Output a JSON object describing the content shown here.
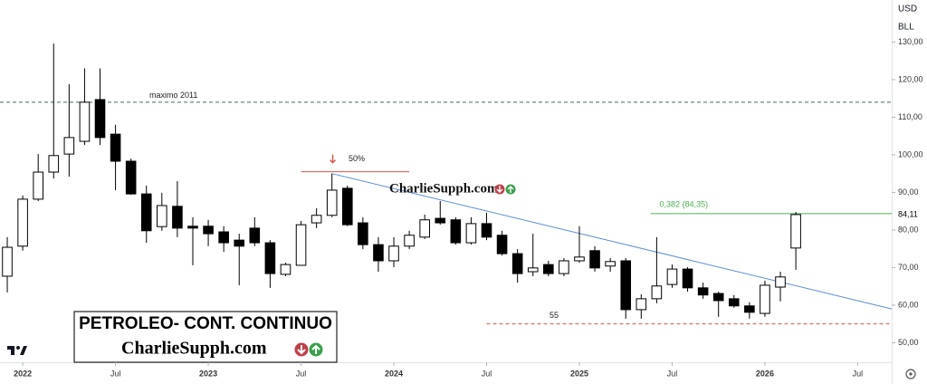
{
  "chart_data": {
    "type": "candlestick",
    "currency": "USD",
    "unit": "BLL",
    "watermark": "CharlieSupph.com",
    "title_box": {
      "title": "PETROLEO- CONT. CONTINUO",
      "brand": "CharlieSupph.com"
    },
    "ylim": [
      44.8,
      141.2
    ],
    "yticks": [
      {
        "value": 50,
        "label": "50,00"
      },
      {
        "value": 60,
        "label": "60,00"
      },
      {
        "value": 70,
        "label": "70,00"
      },
      {
        "value": 80,
        "label": "80,00"
      },
      {
        "value": 90,
        "label": "90,00"
      },
      {
        "value": 100,
        "label": "100,00"
      },
      {
        "value": 110,
        "label": "110,00"
      },
      {
        "value": 120,
        "label": "120,00"
      },
      {
        "value": 130,
        "label": "130,00"
      }
    ],
    "last_price": {
      "value": 84.11,
      "label": "84,11"
    },
    "xlim": [
      -0.47,
      57.2
    ],
    "xticks": [
      {
        "value": 1,
        "label": "2022"
      },
      {
        "value": 7,
        "label": "Jul"
      },
      {
        "value": 13,
        "label": "2023"
      },
      {
        "value": 19,
        "label": "Jul"
      },
      {
        "value": 25,
        "label": "2024"
      },
      {
        "value": 31,
        "label": "Jul"
      },
      {
        "value": 37,
        "label": "2025"
      },
      {
        "value": 43,
        "label": "Jul"
      },
      {
        "value": 49,
        "label": "2026"
      },
      {
        "value": 55,
        "label": "Jul"
      }
    ],
    "categories": [
      null,
      null,
      null,
      null,
      null,
      null,
      null,
      null,
      null,
      null,
      null,
      null,
      null,
      null,
      null,
      null,
      null,
      null,
      null,
      null,
      null,
      null,
      null,
      null,
      null,
      null,
      null,
      null,
      null,
      null,
      null,
      null,
      null,
      null,
      null,
      null,
      null,
      null,
      null,
      null,
      null,
      null,
      null,
      null,
      null,
      null,
      null,
      null,
      null,
      null,
      null,
      null
    ],
    "open": [
      67.7,
      75.7,
      88.2,
      95.4,
      100.2,
      103.6,
      114.7,
      105.5,
      98.3,
      89.6,
      80.9,
      86.3,
      81,
      81,
      79.5,
      77.3,
      80.5,
      76.6,
      68.2,
      70.6,
      81.9,
      83.9,
      91.1,
      81.9,
      76.1,
      71.8,
      75.7,
      78.1,
      83.1,
      82.7,
      76.6,
      81.7,
      78.6,
      73.7,
      68.9,
      70.8,
      68.4,
      71.8,
      74.5,
      70.4,
      71.8,
      58.8,
      61.7,
      65.5,
      69.6,
      64.6,
      63.1,
      61.7,
      59.8,
      57.8,
      64.8,
      75.2
    ],
    "high": [
      78.1,
      89.2,
      100.2,
      129.6,
      118.8,
      123,
      123,
      108,
      99,
      91.8,
      89.9,
      93,
      83.4,
      82.7,
      81,
      79,
      83.4,
      77.3,
      71.3,
      82.4,
      85.8,
      95,
      91.8,
      83.4,
      78.1,
      78.1,
      79.8,
      84.1,
      87.7,
      83.4,
      83.4,
      84.6,
      79.8,
      74.9,
      79,
      71.8,
      72.5,
      81,
      75.7,
      72.5,
      72.5,
      62.9,
      78.1,
      70.8,
      70.1,
      66,
      63.6,
      62.7,
      60.8,
      66.5,
      68.9,
      84.8
    ],
    "low": [
      63.4,
      74.5,
      87.7,
      93.7,
      94.2,
      102.6,
      102.6,
      90.6,
      89.4,
      76.6,
      79.8,
      78.1,
      70.6,
      75.7,
      74.2,
      65.3,
      75.7,
      64.6,
      67.7,
      70.6,
      80.5,
      83.4,
      81,
      74.9,
      68.9,
      70.1,
      74.9,
      77.6,
      81.4,
      76.1,
      76.1,
      77.3,
      73.2,
      66,
      67.7,
      67.7,
      67.7,
      71.3,
      68.9,
      68.9,
      56.4,
      56.4,
      60.5,
      64.6,
      63.6,
      61.7,
      56.9,
      59.3,
      56.4,
      56.9,
      61,
      69.4
    ],
    "close": [
      75.4,
      88.2,
      95.4,
      99.8,
      104.6,
      114,
      104.6,
      98.3,
      89.6,
      79.8,
      86.5,
      80.5,
      80.5,
      79,
      76.6,
      75.7,
      76.6,
      68.4,
      70.8,
      81.4,
      83.9,
      90.6,
      81.4,
      76.1,
      71.8,
      75.7,
      78.6,
      82.7,
      81.9,
      76.6,
      81.7,
      78.1,
      73.7,
      68.4,
      69.9,
      68.4,
      71.8,
      72.8,
      69.9,
      71.6,
      58.8,
      61.7,
      65.1,
      69.6,
      64.6,
      62.7,
      61.2,
      59.8,
      58.1,
      65.3,
      67.5,
      84.1
    ],
    "up_color": "#ffffff",
    "down_color": "#000000",
    "hlines": [
      {
        "label": "maximo 2011",
        "value": 114,
        "from": -0.47,
        "color": "#3d6b66"
      },
      {
        "label": "50%",
        "value": 95.5,
        "from": 19,
        "to": 26,
        "color": "#e0504a"
      },
      {
        "label": "0,382 (84,35)",
        "value": 84.35,
        "from": 41.6,
        "color": "#4caf50"
      },
      {
        "label": "55",
        "value": 55,
        "from": 31,
        "color": "#e0504a"
      }
    ],
    "trendline": {
      "color": "#5b8dd9",
      "points": [
        [
          21,
          95
        ],
        [
          57.2,
          59
        ]
      ]
    }
  }
}
